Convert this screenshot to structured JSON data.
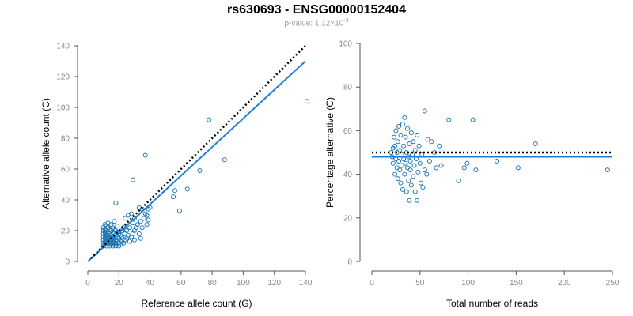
{
  "title": "rs630693 - ENSG00000152404",
  "subtitle": {
    "prefix": "p-value: 1.12×10",
    "exponent": "-3"
  },
  "colors": {
    "points": "#1f77b4",
    "fit_line": "#1e7fd8",
    "reference_line": "#000000"
  },
  "chart_data": [
    {
      "type": "scatter",
      "xlabel": "Reference allele count (G)",
      "ylabel": "Alternative allele count (C)",
      "xlim": [
        0,
        140
      ],
      "ylim": [
        0,
        140
      ],
      "xticks": [
        0,
        20,
        40,
        60,
        80,
        100,
        120,
        140
      ],
      "yticks": [
        0,
        20,
        40,
        60,
        80,
        100,
        120,
        140
      ],
      "grid": false,
      "reference_line": {
        "style": "dotted",
        "points": [
          [
            2,
            2
          ],
          [
            140,
            140
          ]
        ]
      },
      "fit_line": {
        "style": "solid",
        "points": [
          [
            0,
            0
          ],
          [
            140,
            130
          ]
        ]
      },
      "points": [
        [
          10,
          10
        ],
        [
          10,
          12
        ],
        [
          10,
          14
        ],
        [
          10,
          16
        ],
        [
          10,
          18
        ],
        [
          10,
          20
        ],
        [
          10,
          22
        ],
        [
          11,
          11
        ],
        [
          11,
          13
        ],
        [
          11,
          15
        ],
        [
          11,
          17
        ],
        [
          11,
          19
        ],
        [
          11,
          21
        ],
        [
          11,
          24
        ],
        [
          12,
          10
        ],
        [
          12,
          12
        ],
        [
          12,
          14
        ],
        [
          12,
          16
        ],
        [
          12,
          18
        ],
        [
          12,
          20
        ],
        [
          12,
          23
        ],
        [
          13,
          11
        ],
        [
          13,
          13
        ],
        [
          13,
          15
        ],
        [
          13,
          17
        ],
        [
          13,
          19
        ],
        [
          13,
          22
        ],
        [
          13,
          25
        ],
        [
          14,
          10
        ],
        [
          14,
          12
        ],
        [
          14,
          14
        ],
        [
          14,
          16
        ],
        [
          14,
          18
        ],
        [
          14,
          21
        ],
        [
          15,
          11
        ],
        [
          15,
          13
        ],
        [
          15,
          15
        ],
        [
          15,
          17
        ],
        [
          15,
          20
        ],
        [
          15,
          24
        ],
        [
          16,
          10
        ],
        [
          16,
          12
        ],
        [
          16,
          14
        ],
        [
          16,
          16
        ],
        [
          16,
          19
        ],
        [
          16,
          22
        ],
        [
          17,
          11
        ],
        [
          17,
          13
        ],
        [
          17,
          15
        ],
        [
          17,
          18
        ],
        [
          17,
          21
        ],
        [
          17,
          26
        ],
        [
          18,
          10
        ],
        [
          18,
          12
        ],
        [
          18,
          14
        ],
        [
          18,
          17
        ],
        [
          18,
          20
        ],
        [
          18,
          38
        ],
        [
          19,
          11
        ],
        [
          19,
          13
        ],
        [
          19,
          16
        ],
        [
          19,
          19
        ],
        [
          19,
          23
        ],
        [
          20,
          10
        ],
        [
          20,
          12
        ],
        [
          20,
          15
        ],
        [
          20,
          18
        ],
        [
          21,
          11
        ],
        [
          21,
          14
        ],
        [
          21,
          17
        ],
        [
          22,
          13
        ],
        [
          22,
          16
        ],
        [
          22,
          20
        ],
        [
          23,
          12
        ],
        [
          23,
          22
        ],
        [
          24,
          14
        ],
        [
          24,
          18
        ],
        [
          24,
          28
        ],
        [
          25,
          15
        ],
        [
          25,
          20
        ],
        [
          26,
          17
        ],
        [
          26,
          30
        ],
        [
          27,
          13
        ],
        [
          27,
          22
        ],
        [
          28,
          16
        ],
        [
          28,
          31
        ],
        [
          29,
          18
        ],
        [
          29,
          25
        ],
        [
          29,
          53
        ],
        [
          30,
          14
        ],
        [
          30,
          20
        ],
        [
          30,
          28
        ],
        [
          31,
          22
        ],
        [
          32,
          24
        ],
        [
          33,
          18
        ],
        [
          33,
          35
        ],
        [
          34,
          15
        ],
        [
          34,
          26
        ],
        [
          35,
          22
        ],
        [
          35,
          34
        ],
        [
          36,
          28
        ],
        [
          37,
          31
        ],
        [
          37,
          69
        ],
        [
          38,
          24
        ],
        [
          38,
          30
        ],
        [
          39,
          27
        ],
        [
          39,
          34
        ],
        [
          40,
          35
        ],
        [
          55,
          42
        ],
        [
          56,
          46
        ],
        [
          59,
          33
        ],
        [
          64,
          47
        ],
        [
          72,
          59
        ],
        [
          78,
          92
        ],
        [
          88,
          66
        ],
        [
          141,
          104
        ]
      ]
    },
    {
      "type": "scatter",
      "xlabel": "Total number of reads",
      "ylabel": "Percentage alternative (C)",
      "xlim": [
        0,
        250
      ],
      "ylim": [
        0,
        100
      ],
      "xticks": [
        0,
        50,
        100,
        150,
        200,
        250
      ],
      "yticks": [
        0,
        20,
        40,
        60,
        80,
        100
      ],
      "grid": false,
      "reference_line": {
        "style": "dotted",
        "y": 50
      },
      "fit_line": {
        "style": "solid",
        "y": 48
      },
      "points": [
        [
          20,
          50
        ],
        [
          21,
          48
        ],
        [
          22,
          52
        ],
        [
          22,
          45
        ],
        [
          23,
          57
        ],
        [
          24,
          40
        ],
        [
          24,
          53
        ],
        [
          25,
          47
        ],
        [
          25,
          60
        ],
        [
          26,
          43
        ],
        [
          26,
          50
        ],
        [
          27,
          38
        ],
        [
          27,
          55
        ],
        [
          28,
          46
        ],
        [
          28,
          62
        ],
        [
          29,
          42
        ],
        [
          29,
          51
        ],
        [
          30,
          36
        ],
        [
          30,
          58
        ],
        [
          31,
          44
        ],
        [
          31,
          49
        ],
        [
          32,
          33
        ],
        [
          32,
          63
        ],
        [
          33,
          47
        ],
        [
          33,
          53
        ],
        [
          34,
          40
        ],
        [
          34,
          66
        ],
        [
          35,
          45
        ],
        [
          35,
          57
        ],
        [
          36,
          32
        ],
        [
          36,
          50
        ],
        [
          37,
          43
        ],
        [
          37,
          61
        ],
        [
          38,
          48
        ],
        [
          38,
          37
        ],
        [
          39,
          54
        ],
        [
          39,
          28
        ],
        [
          40,
          46
        ],
        [
          40,
          42
        ],
        [
          41,
          59
        ],
        [
          41,
          35
        ],
        [
          42,
          49
        ],
        [
          43,
          39
        ],
        [
          43,
          55
        ],
        [
          44,
          44
        ],
        [
          45,
          32
        ],
        [
          45,
          51
        ],
        [
          46,
          47
        ],
        [
          47,
          28
        ],
        [
          47,
          58
        ],
        [
          48,
          41
        ],
        [
          49,
          53
        ],
        [
          50,
          45
        ],
        [
          51,
          36
        ],
        [
          52,
          49
        ],
        [
          53,
          34
        ],
        [
          55,
          42
        ],
        [
          55,
          69
        ],
        [
          57,
          40
        ],
        [
          58,
          56
        ],
        [
          60,
          46
        ],
        [
          62,
          55
        ],
        [
          65,
          50
        ],
        [
          67,
          43
        ],
        [
          70,
          53
        ],
        [
          72,
          44
        ],
        [
          80,
          65
        ],
        [
          90,
          37
        ],
        [
          96,
          43
        ],
        [
          99,
          45
        ],
        [
          105,
          65
        ],
        [
          108,
          42
        ],
        [
          130,
          46
        ],
        [
          152,
          43
        ],
        [
          170,
          54
        ],
        [
          245,
          42
        ]
      ]
    }
  ]
}
